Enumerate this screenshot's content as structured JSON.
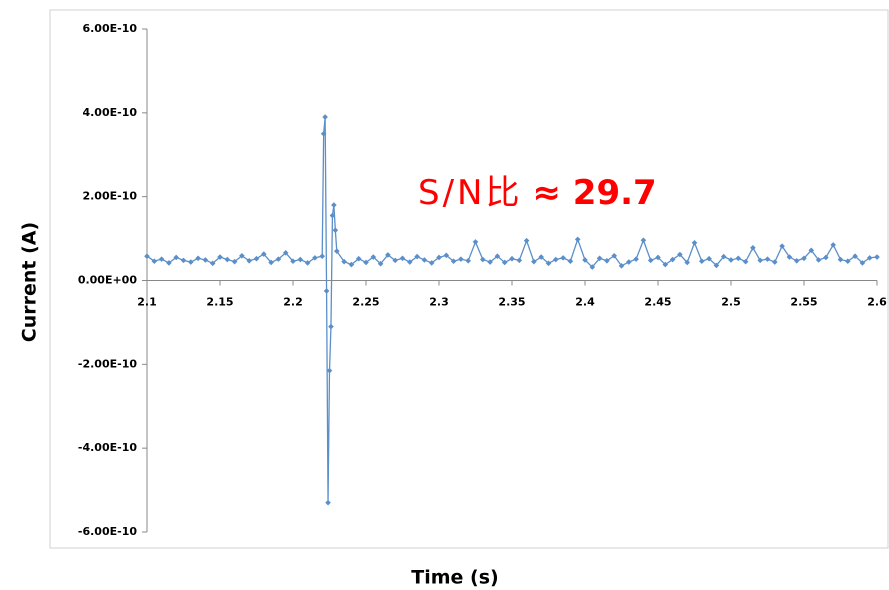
{
  "chart_data": {
    "type": "line",
    "x_label": "Time (s)",
    "y_label": "Current (A)",
    "annotation": [
      "S/N比",
      "≈ 29.7"
    ],
    "x": [
      2.1,
      2.105,
      2.11,
      2.115,
      2.12,
      2.125,
      2.13,
      2.135,
      2.14,
      2.145,
      2.15,
      2.155,
      2.16,
      2.165,
      2.17,
      2.175,
      2.18,
      2.185,
      2.19,
      2.195,
      2.2,
      2.205,
      2.21,
      2.215,
      2.22,
      2.221,
      2.222,
      2.223,
      2.224,
      2.225,
      2.226,
      2.227,
      2.228,
      2.229,
      2.23,
      2.235,
      2.24,
      2.245,
      2.25,
      2.255,
      2.26,
      2.265,
      2.27,
      2.275,
      2.28,
      2.285,
      2.29,
      2.295,
      2.3,
      2.305,
      2.31,
      2.315,
      2.32,
      2.325,
      2.33,
      2.335,
      2.34,
      2.345,
      2.35,
      2.355,
      2.36,
      2.365,
      2.37,
      2.375,
      2.38,
      2.385,
      2.39,
      2.395,
      2.4,
      2.405,
      2.41,
      2.415,
      2.42,
      2.425,
      2.43,
      2.435,
      2.44,
      2.445,
      2.45,
      2.455,
      2.46,
      2.465,
      2.47,
      2.475,
      2.48,
      2.485,
      2.49,
      2.495,
      2.5,
      2.505,
      2.51,
      2.515,
      2.52,
      2.525,
      2.53,
      2.535,
      2.54,
      2.545,
      2.55,
      2.555,
      2.56,
      2.565,
      2.57,
      2.575,
      2.58,
      2.585,
      2.59,
      2.595,
      2.6
    ],
    "series": [
      {
        "name": "Current",
        "color": "#5b8fc9",
        "values": [
          5.8e-11,
          4.6e-11,
          5.1e-11,
          4.2e-11,
          5.5e-11,
          4.8e-11,
          4.4e-11,
          5.3e-11,
          4.9e-11,
          4.1e-11,
          5.6e-11,
          5e-11,
          4.5e-11,
          5.9e-11,
          4.7e-11,
          5.2e-11,
          6.3e-11,
          4.3e-11,
          5.1e-11,
          6.6e-11,
          4.6e-11,
          5e-11,
          4.2e-11,
          5.4e-11,
          5.8e-11,
          3.5e-10,
          3.9e-10,
          -2.5e-11,
          -5.3e-10,
          -2.15e-10,
          -1.1e-10,
          1.55e-10,
          1.8e-10,
          1.2e-10,
          7e-11,
          4.5e-11,
          3.8e-11,
          5.2e-11,
          4.3e-11,
          5.6e-11,
          4e-11,
          6.1e-11,
          4.8e-11,
          5.3e-11,
          4.4e-11,
          5.7e-11,
          4.9e-11,
          4.2e-11,
          5.5e-11,
          6e-11,
          4.6e-11,
          5.1e-11,
          4.7e-11,
          9.2e-11,
          5e-11,
          4.4e-11,
          5.8e-11,
          4.3e-11,
          5.2e-11,
          4.8e-11,
          9.5e-11,
          4.5e-11,
          5.6e-11,
          4.1e-11,
          5e-11,
          5.4e-11,
          4.6e-11,
          9.8e-11,
          4.9e-11,
          3.2e-11,
          5.3e-11,
          4.7e-11,
          5.9e-11,
          3.5e-11,
          4.4e-11,
          5.1e-11,
          9.6e-11,
          4.8e-11,
          5.5e-11,
          3.8e-11,
          5e-11,
          6.2e-11,
          4.3e-11,
          9e-11,
          4.6e-11,
          5.2e-11,
          3.6e-11,
          5.7e-11,
          4.9e-11,
          5.3e-11,
          4.5e-11,
          7.8e-11,
          4.8e-11,
          5.1e-11,
          4.4e-11,
          8.2e-11,
          5.6e-11,
          4.7e-11,
          5.3e-11,
          7.2e-11,
          4.9e-11,
          5.5e-11,
          8.5e-11,
          5e-11,
          4.6e-11,
          5.8e-11,
          4.2e-11,
          5.4e-11,
          5.6e-11
        ]
      }
    ],
    "xlim": [
      2.1,
      2.6
    ],
    "xticks": [
      2.1,
      2.15,
      2.2,
      2.25,
      2.3,
      2.35,
      2.4,
      2.45,
      2.5,
      2.55,
      2.6
    ],
    "ylim": [
      -6e-10,
      6e-10
    ],
    "yticks": [
      {
        "value": 6e-10,
        "label": "6.00E-10"
      },
      {
        "value": 4e-10,
        "label": "4.00E-10"
      },
      {
        "value": 2e-10,
        "label": "2.00E-10"
      },
      {
        "value": 0,
        "label": "0.00E+00"
      },
      {
        "value": -2e-10,
        "label": "-2.00E-10"
      },
      {
        "value": -4e-10,
        "label": "-4.00E-10"
      },
      {
        "value": -6e-10,
        "label": "-6.00E-10"
      }
    ],
    "grid": false
  }
}
